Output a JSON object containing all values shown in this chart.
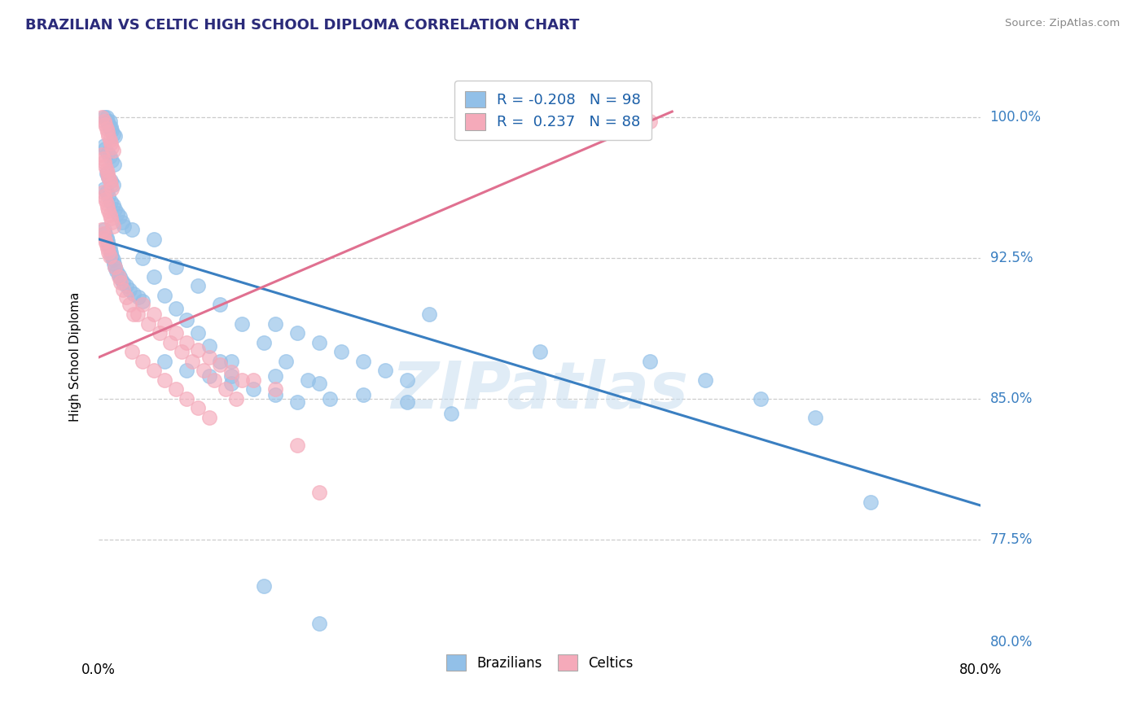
{
  "title": "BRAZILIAN VS CELTIC HIGH SCHOOL DIPLOMA CORRELATION CHART",
  "source": "Source: ZipAtlas.com",
  "ylabel": "High School Diploma",
  "blue_color": "#92C0E8",
  "pink_color": "#F5AABA",
  "blue_line_color": "#3A7FC1",
  "pink_line_color": "#E07090",
  "watermark": "ZIPatlas",
  "legend_r_blue": "-0.208",
  "legend_n_blue": "98",
  "legend_r_pink": "0.237",
  "legend_n_pink": "88",
  "xlim": [
    0.0,
    0.8
  ],
  "ylim": [
    0.72,
    1.025
  ],
  "ytick_values": [
    1.0,
    0.925,
    0.85,
    0.775
  ],
  "ytick_labels": [
    "100.0%",
    "92.5%",
    "85.0%",
    "77.5%"
  ],
  "ybot_label": "80.0%",
  "blue_line_x": [
    0.0,
    0.8
  ],
  "blue_line_y": [
    0.935,
    0.793
  ],
  "pink_line_x": [
    0.0,
    0.52
  ],
  "pink_line_y": [
    0.872,
    1.003
  ],
  "blue_x": [
    0.005,
    0.007,
    0.008,
    0.009,
    0.01,
    0.01,
    0.011,
    0.012,
    0.013,
    0.015,
    0.005,
    0.006,
    0.008,
    0.01,
    0.012,
    0.014,
    0.007,
    0.009,
    0.011,
    0.013,
    0.005,
    0.007,
    0.009,
    0.011,
    0.013,
    0.015,
    0.017,
    0.019,
    0.021,
    0.023,
    0.005,
    0.006,
    0.007,
    0.008,
    0.009,
    0.01,
    0.011,
    0.012,
    0.013,
    0.014,
    0.015,
    0.016,
    0.018,
    0.02,
    0.022,
    0.025,
    0.028,
    0.032,
    0.036,
    0.04,
    0.03,
    0.04,
    0.05,
    0.06,
    0.07,
    0.08,
    0.09,
    0.1,
    0.11,
    0.12,
    0.05,
    0.07,
    0.09,
    0.11,
    0.13,
    0.15,
    0.17,
    0.19,
    0.21,
    0.06,
    0.08,
    0.1,
    0.12,
    0.14,
    0.16,
    0.18,
    0.3,
    0.4,
    0.5,
    0.55,
    0.6,
    0.65,
    0.7,
    0.16,
    0.18,
    0.2,
    0.22,
    0.24,
    0.26,
    0.28,
    0.12,
    0.16,
    0.2,
    0.24,
    0.28,
    0.32,
    0.15,
    0.2
  ],
  "blue_y": [
    1.0,
    1.0,
    0.998,
    0.996,
    0.994,
    0.998,
    0.995,
    0.993,
    0.991,
    0.99,
    0.985,
    0.983,
    0.981,
    0.979,
    0.977,
    0.975,
    0.97,
    0.968,
    0.966,
    0.964,
    0.962,
    0.96,
    0.958,
    0.955,
    0.953,
    0.951,
    0.949,
    0.947,
    0.944,
    0.942,
    0.94,
    0.938,
    0.936,
    0.934,
    0.932,
    0.93,
    0.928,
    0.926,
    0.924,
    0.922,
    0.92,
    0.918,
    0.916,
    0.914,
    0.912,
    0.91,
    0.908,
    0.906,
    0.904,
    0.902,
    0.94,
    0.925,
    0.915,
    0.905,
    0.898,
    0.892,
    0.885,
    0.878,
    0.87,
    0.862,
    0.935,
    0.92,
    0.91,
    0.9,
    0.89,
    0.88,
    0.87,
    0.86,
    0.85,
    0.87,
    0.865,
    0.862,
    0.858,
    0.855,
    0.852,
    0.848,
    0.895,
    0.875,
    0.87,
    0.86,
    0.85,
    0.84,
    0.795,
    0.89,
    0.885,
    0.88,
    0.875,
    0.87,
    0.865,
    0.86,
    0.87,
    0.862,
    0.858,
    0.852,
    0.848,
    0.842,
    0.75,
    0.73
  ],
  "pink_x": [
    0.003,
    0.005,
    0.006,
    0.007,
    0.008,
    0.009,
    0.01,
    0.011,
    0.012,
    0.013,
    0.003,
    0.004,
    0.005,
    0.006,
    0.007,
    0.008,
    0.009,
    0.01,
    0.011,
    0.012,
    0.004,
    0.005,
    0.006,
    0.007,
    0.008,
    0.009,
    0.01,
    0.011,
    0.012,
    0.013,
    0.003,
    0.004,
    0.005,
    0.006,
    0.007,
    0.008,
    0.009,
    0.01,
    0.015,
    0.018,
    0.02,
    0.022,
    0.025,
    0.028,
    0.032,
    0.04,
    0.05,
    0.06,
    0.07,
    0.08,
    0.09,
    0.1,
    0.11,
    0.12,
    0.13,
    0.035,
    0.045,
    0.055,
    0.065,
    0.075,
    0.085,
    0.095,
    0.105,
    0.115,
    0.125,
    0.03,
    0.04,
    0.05,
    0.06,
    0.07,
    0.08,
    0.09,
    0.1,
    0.5,
    0.14,
    0.16,
    0.18,
    0.2
  ],
  "pink_y": [
    1.0,
    0.998,
    0.996,
    0.994,
    0.992,
    0.99,
    0.988,
    0.986,
    0.984,
    0.982,
    0.98,
    0.978,
    0.976,
    0.974,
    0.972,
    0.97,
    0.968,
    0.966,
    0.964,
    0.962,
    0.96,
    0.958,
    0.956,
    0.954,
    0.952,
    0.95,
    0.948,
    0.946,
    0.944,
    0.942,
    0.94,
    0.938,
    0.936,
    0.934,
    0.932,
    0.93,
    0.928,
    0.926,
    0.92,
    0.915,
    0.912,
    0.908,
    0.904,
    0.9,
    0.895,
    0.9,
    0.895,
    0.89,
    0.885,
    0.88,
    0.876,
    0.872,
    0.868,
    0.864,
    0.86,
    0.895,
    0.89,
    0.885,
    0.88,
    0.875,
    0.87,
    0.865,
    0.86,
    0.855,
    0.85,
    0.875,
    0.87,
    0.865,
    0.86,
    0.855,
    0.85,
    0.845,
    0.84,
    0.998,
    0.86,
    0.855,
    0.825,
    0.8
  ]
}
